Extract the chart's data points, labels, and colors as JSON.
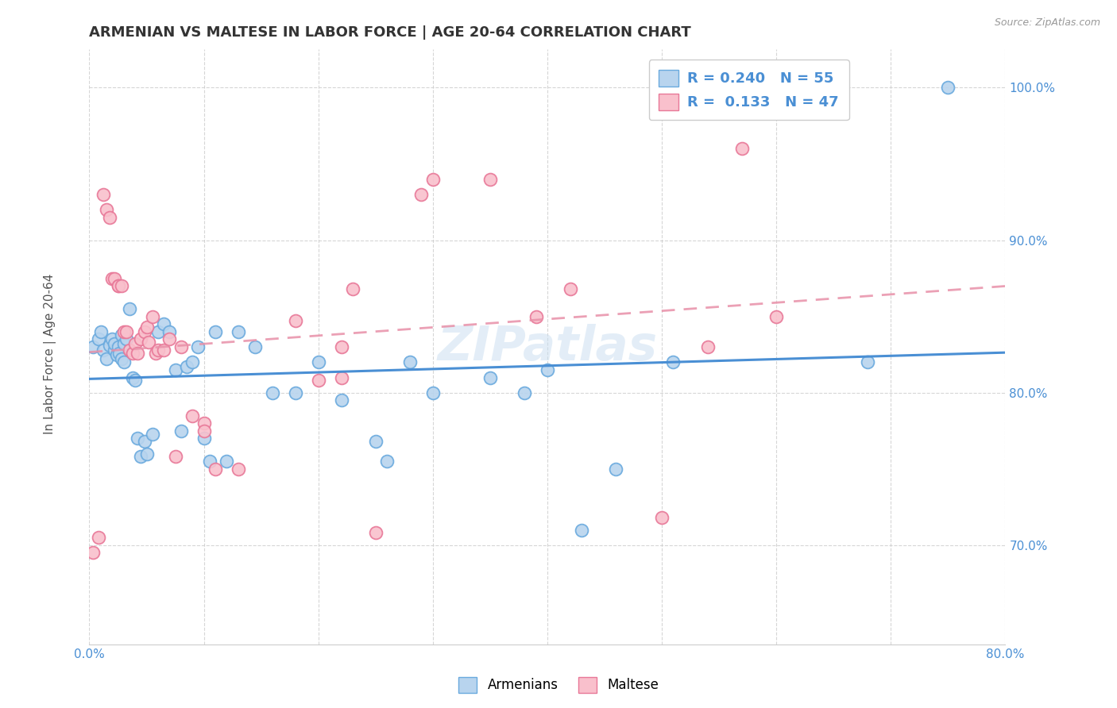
{
  "title": "ARMENIAN VS MALTESE IN LABOR FORCE | AGE 20-64 CORRELATION CHART",
  "source": "Source: ZipAtlas.com",
  "ylabel": "In Labor Force | Age 20-64",
  "watermark": "ZIPatlas",
  "xlim": [
    0.0,
    0.8
  ],
  "ylim": [
    0.635,
    1.025
  ],
  "xticks": [
    0.0,
    0.1,
    0.2,
    0.3,
    0.4,
    0.5,
    0.6,
    0.7,
    0.8
  ],
  "xtick_labels": [
    "0.0%",
    "",
    "",
    "",
    "",
    "",
    "",
    "",
    "80.0%"
  ],
  "yticks": [
    0.7,
    0.8,
    0.9,
    1.0
  ],
  "ytick_labels": [
    "70.0%",
    "80.0%",
    "90.0%",
    "100.0%"
  ],
  "armenians_R": "0.240",
  "armenians_N": "55",
  "maltese_R": "0.133",
  "maltese_N": "47",
  "armenians_scatter_face": "#b8d4ee",
  "armenians_scatter_edge": "#6aaade",
  "maltese_scatter_face": "#f9c0cc",
  "maltese_scatter_edge": "#e87898",
  "armenians_line_color": "#4a8fd4",
  "maltese_line_color": "#e890a8",
  "legend_armenians_face": "#b8d4ee",
  "legend_armenians_edge": "#6aaade",
  "legend_maltese_face": "#f9c0cc",
  "legend_maltese_edge": "#e87898",
  "legend_text_color": "#4a8fd4",
  "tick_color": "#4a8fd4",
  "ylabel_color": "#555555",
  "title_color": "#333333",
  "source_color": "#999999",
  "grid_color": "#cccccc",
  "background_color": "#ffffff",
  "watermark_color": "#c8ddf0",
  "armenians_x": [
    0.003,
    0.008,
    0.01,
    0.012,
    0.015,
    0.018,
    0.02,
    0.022,
    0.022,
    0.024,
    0.025,
    0.026,
    0.028,
    0.028,
    0.03,
    0.03,
    0.032,
    0.035,
    0.038,
    0.04,
    0.042,
    0.045,
    0.048,
    0.05,
    0.055,
    0.06,
    0.065,
    0.07,
    0.075,
    0.08,
    0.085,
    0.09,
    0.095,
    0.1,
    0.105,
    0.11,
    0.12,
    0.13,
    0.145,
    0.16,
    0.18,
    0.2,
    0.22,
    0.25,
    0.26,
    0.28,
    0.3,
    0.35,
    0.38,
    0.4,
    0.43,
    0.46,
    0.51,
    0.68,
    0.75
  ],
  "armenians_y": [
    0.83,
    0.835,
    0.84,
    0.828,
    0.822,
    0.831,
    0.835,
    0.828,
    0.832,
    0.825,
    0.83,
    0.826,
    0.822,
    0.838,
    0.832,
    0.82,
    0.835,
    0.855,
    0.81,
    0.808,
    0.77,
    0.758,
    0.768,
    0.76,
    0.773,
    0.84,
    0.845,
    0.84,
    0.815,
    0.775,
    0.817,
    0.82,
    0.83,
    0.77,
    0.755,
    0.84,
    0.755,
    0.84,
    0.83,
    0.8,
    0.8,
    0.82,
    0.795,
    0.768,
    0.755,
    0.82,
    0.8,
    0.81,
    0.8,
    0.815,
    0.71,
    0.75,
    0.82,
    0.82,
    1.0
  ],
  "maltese_x": [
    0.003,
    0.008,
    0.012,
    0.015,
    0.018,
    0.02,
    0.022,
    0.025,
    0.025,
    0.028,
    0.03,
    0.032,
    0.035,
    0.038,
    0.04,
    0.042,
    0.045,
    0.048,
    0.05,
    0.052,
    0.055,
    0.058,
    0.06,
    0.065,
    0.07,
    0.075,
    0.08,
    0.09,
    0.1,
    0.1,
    0.11,
    0.13,
    0.18,
    0.2,
    0.22,
    0.22,
    0.23,
    0.25,
    0.29,
    0.3,
    0.35,
    0.39,
    0.42,
    0.5,
    0.54,
    0.57,
    0.6
  ],
  "maltese_y": [
    0.695,
    0.705,
    0.93,
    0.92,
    0.915,
    0.875,
    0.875,
    0.87,
    0.87,
    0.87,
    0.84,
    0.84,
    0.828,
    0.826,
    0.832,
    0.826,
    0.835,
    0.84,
    0.843,
    0.833,
    0.85,
    0.826,
    0.828,
    0.828,
    0.835,
    0.758,
    0.83,
    0.785,
    0.78,
    0.775,
    0.75,
    0.75,
    0.847,
    0.808,
    0.81,
    0.83,
    0.868,
    0.708,
    0.93,
    0.94,
    0.94,
    0.85,
    0.868,
    0.718,
    0.83,
    0.96,
    0.85
  ]
}
